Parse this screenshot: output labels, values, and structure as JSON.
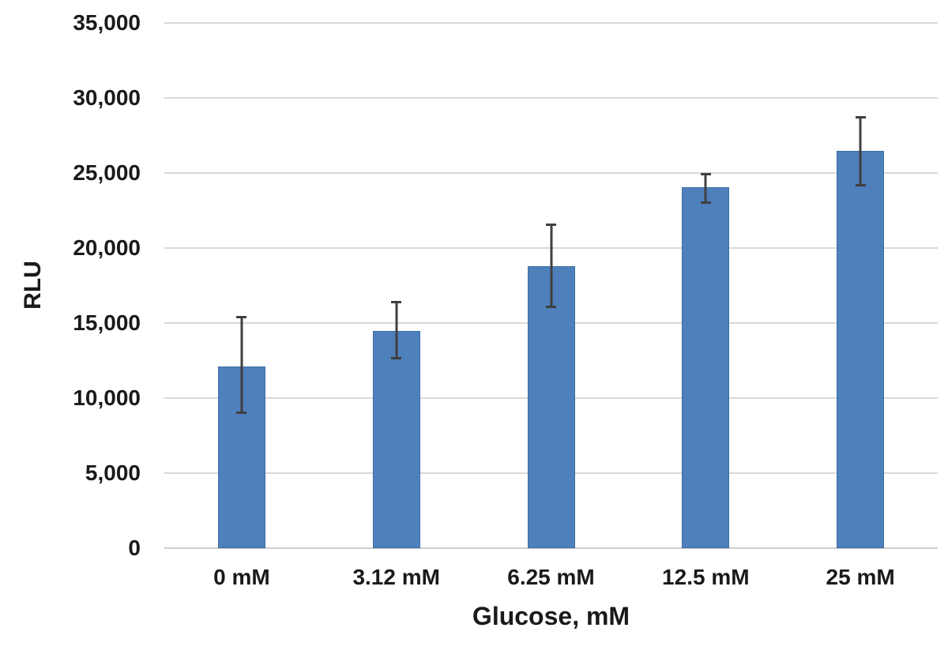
{
  "chart_data": {
    "type": "bar",
    "title": "",
    "xlabel": "Glucose, mM",
    "ylabel": "RLU",
    "categories": [
      "0 mM",
      "3.12 mM",
      "6.25 mM",
      "12.5 mM",
      "25 mM"
    ],
    "values": [
      12100,
      14500,
      18800,
      24050,
      26450
    ],
    "error_upper": [
      15450,
      16450,
      21650,
      25000,
      28800
    ],
    "error_lower": [
      8950,
      12600,
      16000,
      22950,
      24100
    ],
    "ylim": [
      0,
      35000
    ],
    "ytick_interval": 5000,
    "ytick_labels": [
      "0",
      "5,000",
      "10,000",
      "15,000",
      "20,000",
      "25,000",
      "30,000",
      "35,000"
    ],
    "grid": true,
    "legend": "none",
    "colors": {
      "bar_fill": "#4e80bc",
      "bar_border": "#3d6fa6",
      "error_bar": "#404040",
      "gridline": "#d9d9d9",
      "axis_line": "#cccccc",
      "text": "#1a1a1a",
      "background": "#ffffff"
    }
  }
}
